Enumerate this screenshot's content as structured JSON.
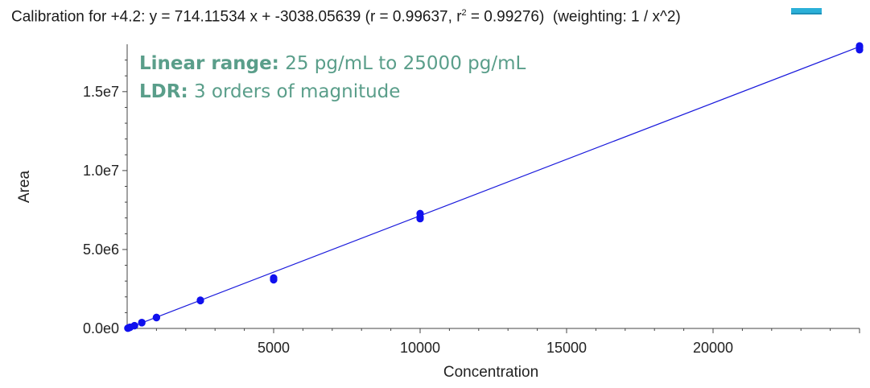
{
  "chart_data": {
    "type": "scatter",
    "title": {
      "prefix": "Calibration for ",
      "series_id": "+4.2",
      "equation": "y = 714.11534 x + -3038.05639",
      "r": "r = 0.99637",
      "r2_label": "r",
      "r2_exp": "2",
      "r2_value": " = 0.99276",
      "weighting": "(weighting: 1 / x^2)"
    },
    "annotations": {
      "line1_label": "Linear range:",
      "line1_text": " 25 pg/mL to 25000 pg/mL",
      "line2_label": "LDR:",
      "line2_text": " 3 orders of magnitude"
    },
    "xlabel": "Concentration",
    "ylabel": "Area",
    "xlim": [
      0,
      25000
    ],
    "ylim": [
      0,
      18000000
    ],
    "x_ticks": [
      {
        "value": 5000,
        "label": "5000"
      },
      {
        "value": 10000,
        "label": "10000"
      },
      {
        "value": 15000,
        "label": "15000"
      },
      {
        "value": 20000,
        "label": "20000"
      }
    ],
    "y_ticks": [
      {
        "value": 0,
        "label": "0.0e0"
      },
      {
        "value": 5000000,
        "label": "5.0e6"
      },
      {
        "value": 10000000,
        "label": "1.0e7"
      },
      {
        "value": 15000000,
        "label": "1.5e7"
      }
    ],
    "fit": {
      "slope": 714.11534,
      "intercept": -3038.05639,
      "color": "#1a1adc"
    },
    "points": {
      "color": "#1010ee",
      "x": [
        25,
        25,
        50,
        50,
        100,
        100,
        250,
        250,
        500,
        500,
        1000,
        1000,
        2500,
        2500,
        5000,
        5000,
        10000,
        10000,
        10000,
        25000,
        25000,
        25000
      ],
      "y": [
        20000,
        15000,
        40000,
        35000,
        80000,
        70000,
        180000,
        170000,
        380000,
        360000,
        700000,
        680000,
        1790000,
        1760000,
        3200000,
        3080000,
        7280000,
        7050000,
        6950000,
        17900000,
        17800000,
        17650000
      ]
    },
    "grid": false
  }
}
